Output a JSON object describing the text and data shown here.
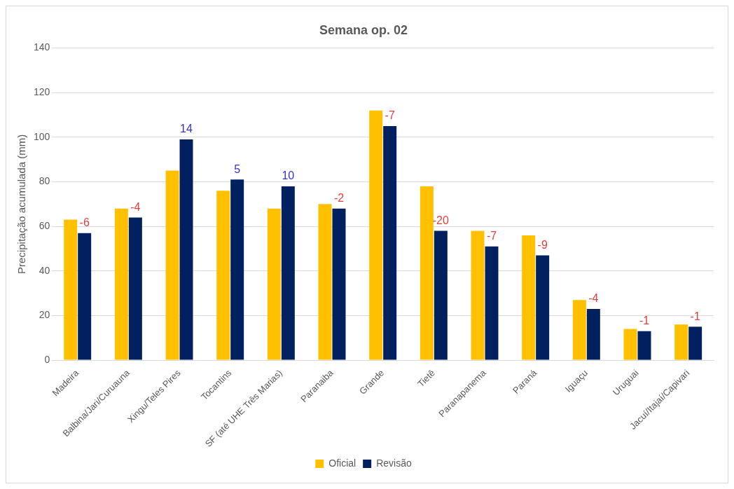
{
  "chart_data": {
    "type": "bar",
    "title": "Semana op. 02",
    "ylabel": "Precipitação acumulada (mm)",
    "categories": [
      "Madeira",
      "Balbina/Jari/Curuauna",
      "Xingu/Teles Pires",
      "Tocantins",
      "SF (até UHE Três Marias)",
      "Paranaiba",
      "Grande",
      "Tietê",
      "Paranapanema",
      "Paraná",
      "Iguaçu",
      "Uruguai",
      "Jacuí/Itajaí/Capivari"
    ],
    "series": [
      {
        "name": "Oficial",
        "color": "#ffc000",
        "values": [
          63,
          68,
          85,
          76,
          68,
          70,
          112,
          78,
          58,
          56,
          27,
          14,
          16
        ]
      },
      {
        "name": "Revisão",
        "color": "#002060",
        "values": [
          57,
          64,
          99,
          81,
          78,
          68,
          105,
          58,
          51,
          47,
          23,
          13,
          15
        ]
      }
    ],
    "annotations": [
      {
        "text": "-6",
        "x": "Madeira",
        "y": 57
      },
      {
        "text": "-4",
        "x": "Balbina/Jari/Curuauna",
        "y": 64
      },
      {
        "text": "14",
        "x": "Xingu/Teles Pires",
        "y": 99
      },
      {
        "text": "5",
        "x": "Tocantins",
        "y": 81
      },
      {
        "text": "10",
        "x": "SF (até UHE Três Marias)",
        "y": 78
      },
      {
        "text": "-2",
        "x": "Paranaiba",
        "y": 68
      },
      {
        "text": "-7",
        "x": "Grande",
        "y": 105
      },
      {
        "text": "-20",
        "x": "Tietê",
        "y": 58
      },
      {
        "text": "-7",
        "x": "Paranapanema",
        "y": 51
      },
      {
        "text": "-9",
        "x": "Paraná",
        "y": 47
      },
      {
        "text": "-4",
        "x": "Iguaçu",
        "y": 23
      },
      {
        "text": "-1",
        "x": "Uruguai",
        "y": 13
      },
      {
        "text": "-1",
        "x": "Jacuí/Itajaí/Capivari",
        "y": 15
      }
    ],
    "ylim": [
      0,
      140
    ],
    "yticks": [
      0,
      20,
      40,
      60,
      80,
      100,
      120,
      140
    ],
    "grid": "y",
    "legend": "bottom"
  }
}
